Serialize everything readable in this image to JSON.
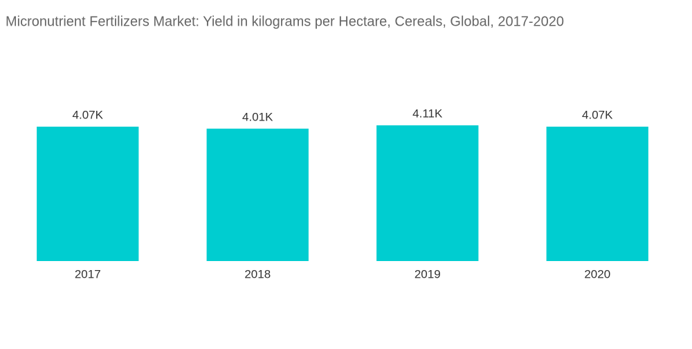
{
  "chart_data": {
    "type": "bar",
    "title": "Micronutrient Fertilizers Market:  Yield in kilograms per Hectare, Cereals, Global, 2017-2020",
    "categories": [
      "2017",
      "2018",
      "2019",
      "2020"
    ],
    "values": [
      4070,
      4010,
      4110,
      4070
    ],
    "value_labels": [
      "4.07K",
      "4.01K",
      "4.11K",
      "4.07K"
    ],
    "color": "#00cdd0"
  }
}
